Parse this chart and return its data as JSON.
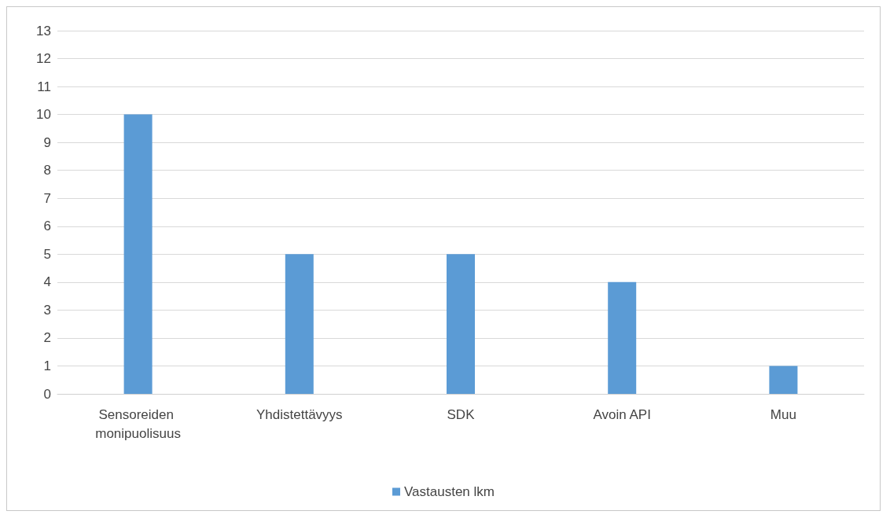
{
  "chart_data": {
    "type": "bar",
    "categories": [
      "Sensoreiden monipuolisuus",
      "Yhdistettävyys",
      "SDK",
      "Avoin API",
      "Muu"
    ],
    "series": [
      {
        "name": "Vastausten lkm",
        "color": "#5b9bd5",
        "values": [
          10,
          5,
          5,
          4,
          1
        ]
      }
    ],
    "ylim": [
      0,
      13
    ],
    "yticks": [
      0,
      1,
      2,
      3,
      4,
      5,
      6,
      7,
      8,
      9,
      10,
      11,
      12,
      13
    ],
    "grid": "y",
    "legend": "bottom"
  }
}
